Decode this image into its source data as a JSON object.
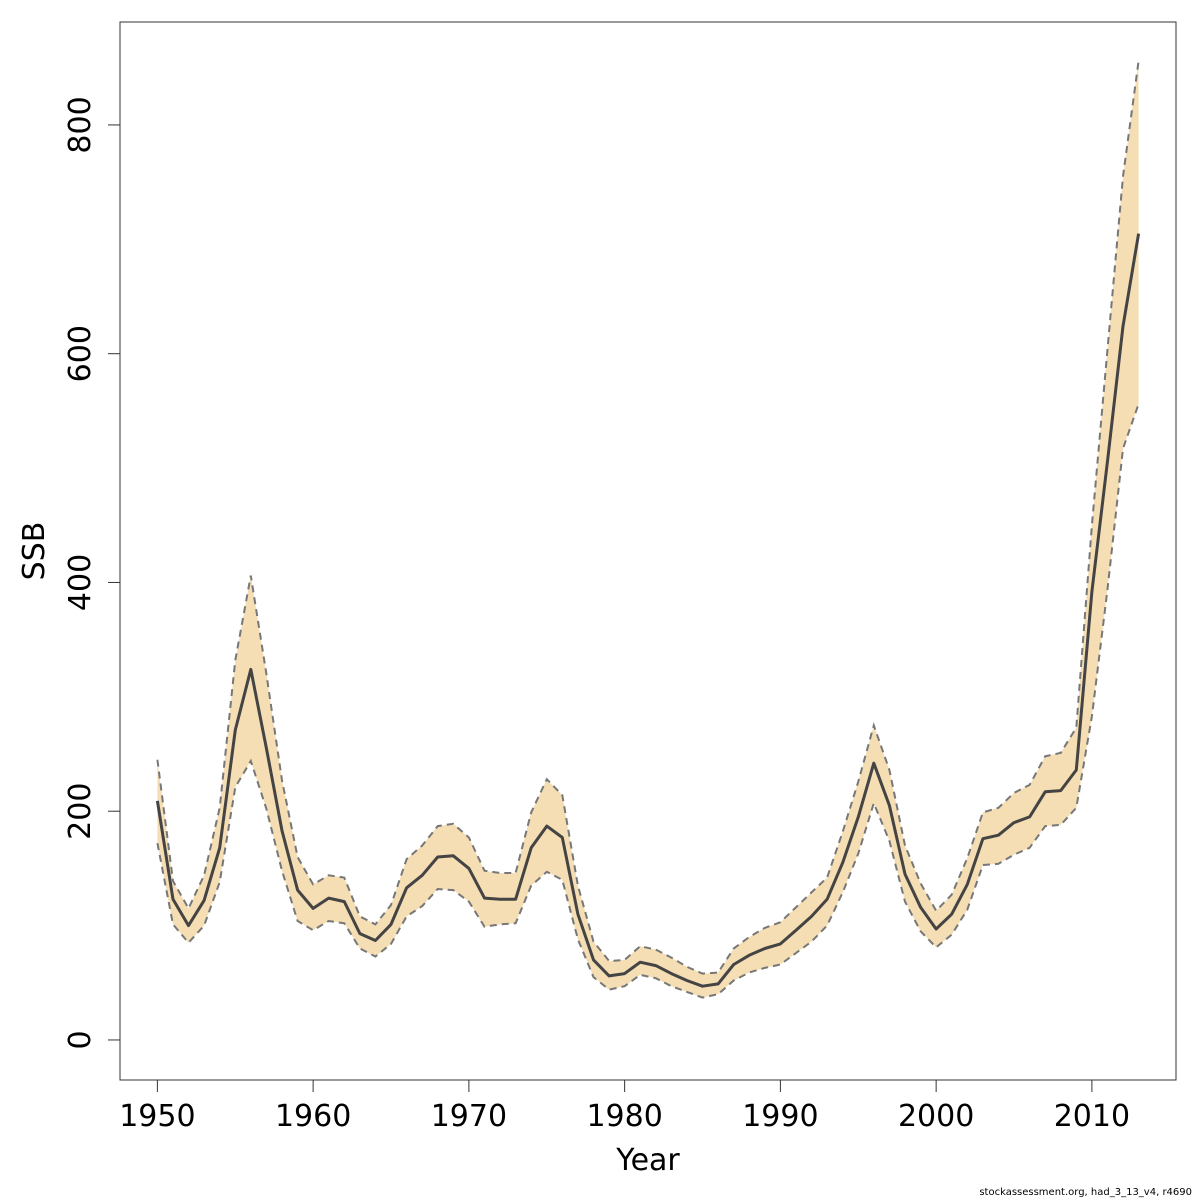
{
  "chart_data": {
    "type": "line",
    "xlabel": "Year",
    "ylabel": "SSB",
    "xlim": [
      1947.6,
      2015.4
    ],
    "ylim": [
      -35,
      890
    ],
    "x_ticks": [
      1950,
      1960,
      1970,
      1980,
      1990,
      2000,
      2010
    ],
    "y_ticks": [
      0,
      200,
      400,
      600,
      800
    ],
    "grid": false,
    "band_color": "#f5deb3",
    "line_color": "#444444",
    "band_edge_color": "#777777",
    "x": [
      1950,
      1951,
      1952,
      1953,
      1954,
      1955,
      1956,
      1957,
      1958,
      1959,
      1960,
      1961,
      1962,
      1963,
      1964,
      1965,
      1966,
      1967,
      1968,
      1969,
      1970,
      1971,
      1972,
      1973,
      1974,
      1975,
      1976,
      1977,
      1978,
      1979,
      1980,
      1981,
      1982,
      1983,
      1984,
      1985,
      1986,
      1987,
      1988,
      1989,
      1990,
      1991,
      1992,
      1993,
      1994,
      1995,
      1996,
      1997,
      1998,
      1999,
      2000,
      2001,
      2002,
      2003,
      2004,
      2005,
      2006,
      2007,
      2008,
      2009,
      2010,
      2011,
      2012,
      2013
    ],
    "series": [
      {
        "values": [
          209,
          123,
          100,
          122,
          168,
          271,
          324,
          255,
          183,
          131,
          115,
          124,
          121,
          93,
          87,
          101,
          133,
          144,
          160,
          161,
          150,
          124,
          123,
          123,
          168,
          187,
          177,
          110,
          70,
          56,
          58,
          68,
          65,
          58,
          52,
          47,
          49,
          66,
          74,
          80,
          84,
          96,
          108,
          123,
          155,
          195,
          242,
          205,
          145,
          116,
          97,
          110,
          136,
          176,
          179,
          190,
          195,
          217,
          218,
          236,
          392,
          506,
          624,
          705
        ]
      }
    ],
    "lower": [
      172,
      101,
      85,
      100,
      138,
      221,
      244,
      202,
      148,
      104,
      96,
      104,
      102,
      80,
      73,
      84,
      108,
      117,
      132,
      131,
      121,
      99,
      101,
      102,
      135,
      147,
      140,
      88,
      55,
      44,
      47,
      57,
      54,
      47,
      42,
      37,
      40,
      52,
      59,
      63,
      66,
      76,
      86,
      100,
      129,
      163,
      207,
      174,
      121,
      95,
      81,
      92,
      114,
      153,
      154,
      162,
      168,
      187,
      188,
      203,
      283,
      394,
      517,
      556
    ],
    "upper": [
      245,
      139,
      115,
      144,
      203,
      332,
      406,
      320,
      227,
      160,
      136,
      144,
      142,
      108,
      101,
      118,
      158,
      170,
      187,
      189,
      177,
      148,
      146,
      146,
      199,
      228,
      214,
      135,
      86,
      69,
      70,
      82,
      79,
      72,
      64,
      58,
      59,
      80,
      90,
      98,
      103,
      116,
      129,
      142,
      182,
      226,
      275,
      236,
      170,
      137,
      113,
      127,
      159,
      199,
      203,
      216,
      223,
      248,
      251,
      273,
      450,
      604,
      755,
      856
    ]
  },
  "footer": "stockassessment.org, had_3_13_v4, r4690"
}
